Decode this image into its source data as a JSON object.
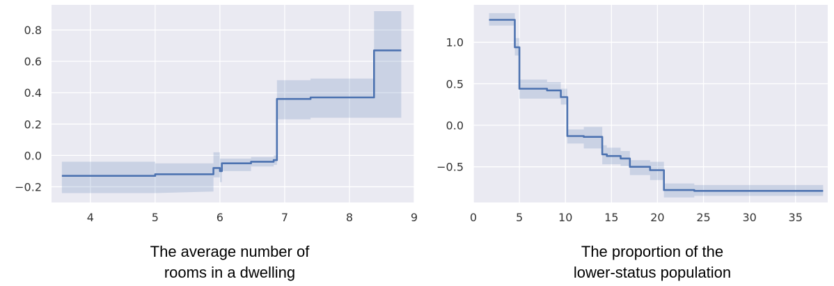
{
  "chart_data": [
    {
      "type": "line",
      "xlabel": "The average number of rooms in a dwelling",
      "xlabel_lines": [
        "The average number of",
        "rooms in a dwelling"
      ],
      "xlim": [
        3.4,
        9.0
      ],
      "ylim": [
        -0.3,
        0.96
      ],
      "xticks": [
        4,
        5,
        6,
        7,
        8,
        9
      ],
      "yticks": [
        -0.2,
        0.0,
        0.2,
        0.4,
        0.6,
        0.8
      ],
      "ytick_labels": [
        "−0.2",
        "0.0",
        "0.2",
        "0.4",
        "0.6",
        "0.8"
      ],
      "grid": true,
      "series": [
        {
          "x": [
            3.56,
            5.0,
            5.0,
            5.9,
            5.9,
            6.0,
            6.0,
            6.03,
            6.03,
            6.48,
            6.48,
            6.83,
            6.83,
            6.88,
            6.88,
            7.4,
            7.4,
            8.38,
            8.38,
            8.8
          ],
          "y": [
            -0.13,
            -0.13,
            -0.12,
            -0.12,
            -0.08,
            -0.08,
            -0.1,
            -0.1,
            -0.05,
            -0.05,
            -0.04,
            -0.04,
            -0.03,
            -0.03,
            0.36,
            0.36,
            0.37,
            0.37,
            0.67,
            0.67
          ],
          "lower": [
            -0.24,
            -0.24,
            -0.24,
            -0.23,
            -0.14,
            -0.14,
            -0.17,
            -0.17,
            -0.1,
            -0.1,
            -0.07,
            -0.07,
            -0.06,
            -0.06,
            0.23,
            0.23,
            0.24,
            0.24,
            0.24,
            0.24
          ],
          "upper": [
            -0.04,
            -0.04,
            -0.05,
            -0.05,
            0.02,
            0.02,
            -0.02,
            -0.02,
            -0.02,
            -0.02,
            -0.01,
            -0.01,
            0.0,
            0.0,
            0.48,
            0.48,
            0.49,
            0.49,
            0.92,
            0.92
          ]
        }
      ]
    },
    {
      "type": "line",
      "xlabel": "The proportion of the lower-status population",
      "xlabel_lines": [
        "The proportion of the",
        "lower-status population"
      ],
      "xlim": [
        0,
        38.5
      ],
      "ylim": [
        -0.93,
        1.45
      ],
      "xticks": [
        0,
        5,
        10,
        15,
        20,
        25,
        30,
        35
      ],
      "yticks": [
        -0.5,
        0.0,
        0.5,
        1.0
      ],
      "ytick_labels": [
        "−0.5",
        "0.0",
        "0.5",
        "1.0"
      ],
      "grid": true,
      "series": [
        {
          "x": [
            1.7,
            4.5,
            4.5,
            5.0,
            5.0,
            8.0,
            8.0,
            9.5,
            9.5,
            10.2,
            10.2,
            12.0,
            12.0,
            14.0,
            14.0,
            14.5,
            14.5,
            16.0,
            16.0,
            17.0,
            17.0,
            19.2,
            19.2,
            20.7,
            20.7,
            24.0,
            24.0,
            38.0
          ],
          "y": [
            1.27,
            1.27,
            0.94,
            0.94,
            0.44,
            0.44,
            0.42,
            0.42,
            0.34,
            0.34,
            -0.13,
            -0.13,
            -0.14,
            -0.14,
            -0.35,
            -0.35,
            -0.37,
            -0.37,
            -0.4,
            -0.4,
            -0.5,
            -0.5,
            -0.54,
            -0.54,
            -0.78,
            -0.78,
            -0.79,
            -0.79
          ],
          "lower": [
            1.2,
            1.2,
            0.84,
            0.84,
            0.32,
            0.32,
            0.32,
            0.32,
            0.25,
            0.25,
            -0.22,
            -0.22,
            -0.28,
            -0.28,
            -0.47,
            -0.47,
            -0.47,
            -0.47,
            -0.49,
            -0.49,
            -0.6,
            -0.6,
            -0.66,
            -0.66,
            -0.87,
            -0.87,
            -0.85,
            -0.85
          ],
          "upper": [
            1.35,
            1.35,
            1.05,
            1.05,
            0.55,
            0.55,
            0.52,
            0.52,
            0.44,
            0.44,
            -0.05,
            -0.05,
            -0.02,
            -0.02,
            -0.24,
            -0.24,
            -0.27,
            -0.27,
            -0.31,
            -0.31,
            -0.42,
            -0.42,
            -0.44,
            -0.44,
            -0.7,
            -0.7,
            -0.72,
            -0.72
          ]
        }
      ]
    }
  ],
  "colors": {
    "plot_bg": "#eaeaf2",
    "line": "#4c72b0",
    "band": "#4c72b0",
    "grid": "#ffffff",
    "tick_text": "#333333"
  }
}
